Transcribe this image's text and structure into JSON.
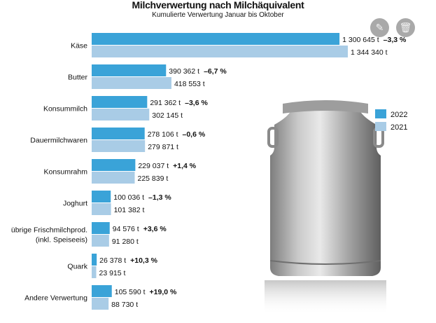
{
  "chart_data": {
    "type": "bar",
    "orientation": "horizontal",
    "title": "Milchverwertung nach Milchäquivalent",
    "subtitle": "Kumulierte Verwertung Januar bis Oktober",
    "unit": "t",
    "categories": [
      "Käse",
      "Butter",
      "Konsummilch",
      "Dauermilchwaren",
      "Konsumrahm",
      "Joghurt",
      "übrige Frischmilchprod.\n(inkl. Speiseeis)",
      "Quark",
      "Andere Verwertung"
    ],
    "series": [
      {
        "name": "2022",
        "color": "#3aa3d8",
        "values": [
          1300645,
          390362,
          291362,
          278106,
          229037,
          100036,
          94576,
          26378,
          105590
        ],
        "labels": [
          "1 300 645 t",
          "390 362 t",
          "291 362 t",
          "278 106 t",
          "229 037 t",
          "100 036 t",
          "94 576 t",
          "26 378 t",
          "105 590 t"
        ]
      },
      {
        "name": "2021",
        "color": "#a9cce6",
        "values": [
          1344340,
          418553,
          302145,
          279871,
          225839,
          101382,
          91280,
          23915,
          88730
        ],
        "labels": [
          "1 344 340 t",
          "418 553 t",
          "302 145 t",
          "279 871 t",
          "225 839 t",
          "101 382 t",
          "91 280 t",
          "23 915 t",
          "88 730 t"
        ]
      }
    ],
    "change": [
      "–3,3 %",
      "–6,7 %",
      "–3,6 %",
      "–0,6 %",
      "+1,4 %",
      "–1,3 %",
      "+3,6 %",
      "+10,3 %",
      "+19,0 %"
    ],
    "legend": [
      "2022",
      "2021"
    ],
    "legend_position": "right",
    "grid": false
  },
  "toolbar": {
    "edit_icon": "edit-icon",
    "delete_icon": "trash-icon"
  }
}
